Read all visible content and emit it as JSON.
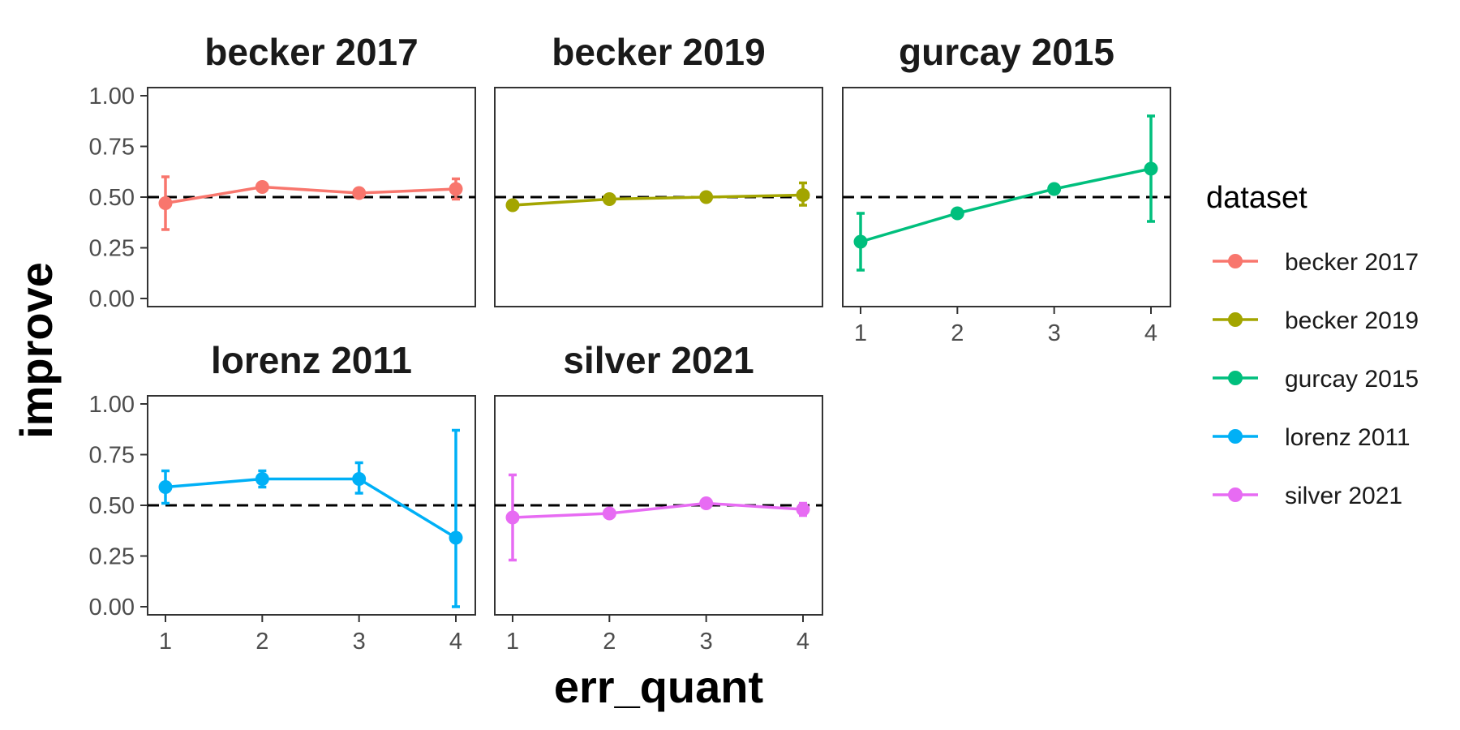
{
  "chart_data": {
    "type": "line",
    "facet_wrap": true,
    "xlabel": "err_quant",
    "ylabel": "improve",
    "x_ticks": [
      "1",
      "2",
      "3",
      "4"
    ],
    "y_ticks": [
      "0.00",
      "0.25",
      "0.50",
      "0.75",
      "1.00"
    ],
    "ylim": [
      0,
      1
    ],
    "xlim": [
      1,
      4
    ],
    "reference_line": {
      "y": 0.5,
      "style": "dashed"
    },
    "legend": {
      "title": "dataset",
      "position": "right"
    },
    "panels": [
      {
        "name": "becker 2017",
        "color": "#F8766D",
        "x": [
          1,
          2,
          3,
          4
        ],
        "y": [
          0.47,
          0.55,
          0.52,
          0.54
        ],
        "lower": [
          0.34,
          0.54,
          0.51,
          0.49
        ],
        "upper": [
          0.6,
          0.56,
          0.53,
          0.59
        ]
      },
      {
        "name": "becker 2019",
        "color": "#A3A500",
        "x": [
          1,
          2,
          3,
          4
        ],
        "y": [
          0.46,
          0.49,
          0.5,
          0.51
        ],
        "lower": [
          0.44,
          0.48,
          0.49,
          0.46
        ],
        "upper": [
          0.48,
          0.5,
          0.51,
          0.57
        ]
      },
      {
        "name": "gurcay 2015",
        "color": "#00BF7D",
        "x": [
          1,
          2,
          3,
          4
        ],
        "y": [
          0.28,
          0.42,
          0.54,
          0.64
        ],
        "lower": [
          0.14,
          0.41,
          0.53,
          0.38
        ],
        "upper": [
          0.42,
          0.43,
          0.55,
          0.9
        ]
      },
      {
        "name": "lorenz 2011",
        "color": "#00B0F6",
        "x": [
          1,
          2,
          3,
          4
        ],
        "y": [
          0.59,
          0.63,
          0.63,
          0.34
        ],
        "lower": [
          0.51,
          0.59,
          0.56,
          0.0
        ],
        "upper": [
          0.67,
          0.67,
          0.71,
          0.87
        ]
      },
      {
        "name": "silver 2021",
        "color": "#E76BF3",
        "x": [
          1,
          2,
          3,
          4
        ],
        "y": [
          0.44,
          0.46,
          0.51,
          0.48
        ],
        "lower": [
          0.23,
          0.45,
          0.5,
          0.45
        ],
        "upper": [
          0.65,
          0.47,
          0.52,
          0.51
        ]
      }
    ]
  }
}
